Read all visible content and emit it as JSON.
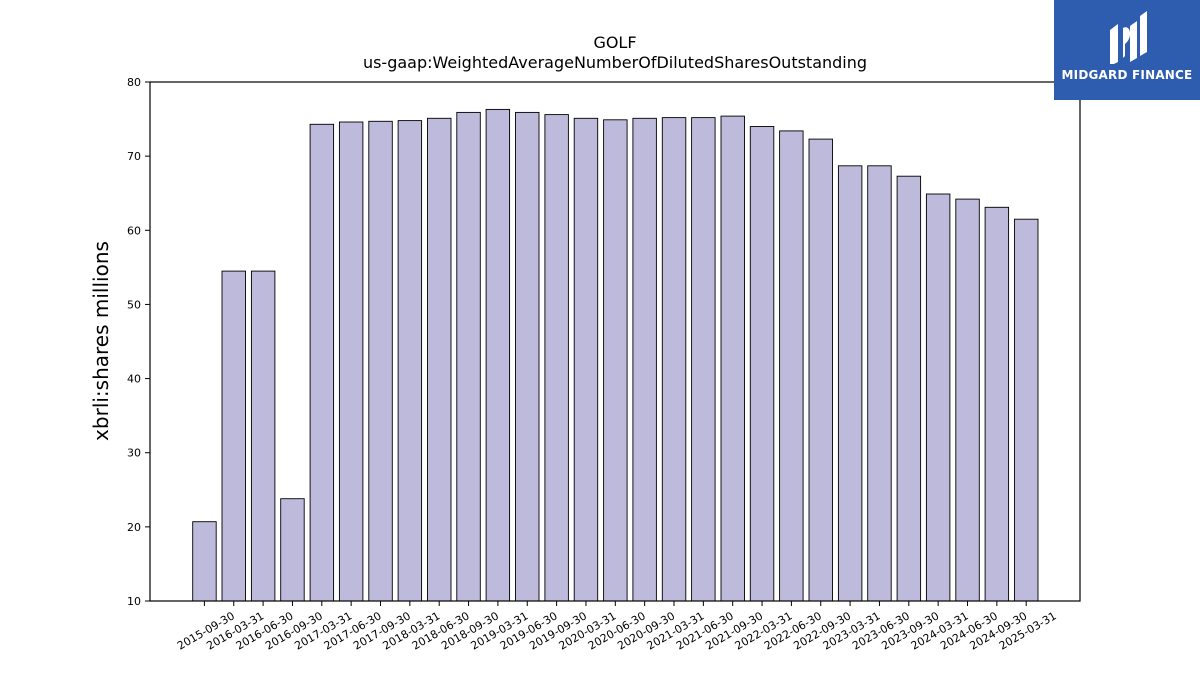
{
  "brand": {
    "name": "MIDGARD FINANCE",
    "color": "#2e5cae"
  },
  "chart_data": {
    "type": "bar",
    "title": "GOLF",
    "subtitle": "us-gaap:WeightedAverageNumberOfDilutedSharesOutstanding",
    "xlabel": "",
    "ylabel": "xbrli:shares millions",
    "ylim": [
      10,
      80
    ],
    "yticks": [
      10,
      20,
      30,
      40,
      50,
      60,
      70,
      80
    ],
    "grid": false,
    "bar_color": "#bdbadb",
    "bar_edge_color": "#000000",
    "categories": [
      "2015-09-30",
      "2016-03-31",
      "2016-06-30",
      "2016-09-30",
      "2017-03-31",
      "2017-06-30",
      "2017-09-30",
      "2018-03-31",
      "2018-06-30",
      "2018-09-30",
      "2019-03-31",
      "2019-06-30",
      "2019-09-30",
      "2020-03-31",
      "2020-06-30",
      "2020-09-30",
      "2021-03-31",
      "2021-06-30",
      "2021-09-30",
      "2022-03-31",
      "2022-06-30",
      "2022-09-30",
      "2023-03-31",
      "2023-06-30",
      "2023-09-30",
      "2024-03-31",
      "2024-06-30",
      "2024-09-30",
      "2025-03-31"
    ],
    "values": [
      20.7,
      54.5,
      54.5,
      23.8,
      74.3,
      74.6,
      74.7,
      74.8,
      75.1,
      75.9,
      76.3,
      75.9,
      75.6,
      75.1,
      74.9,
      75.1,
      75.2,
      75.2,
      75.4,
      74.0,
      73.4,
      72.3,
      68.7,
      68.7,
      67.3,
      64.9,
      64.2,
      63.1,
      61.5
    ]
  }
}
